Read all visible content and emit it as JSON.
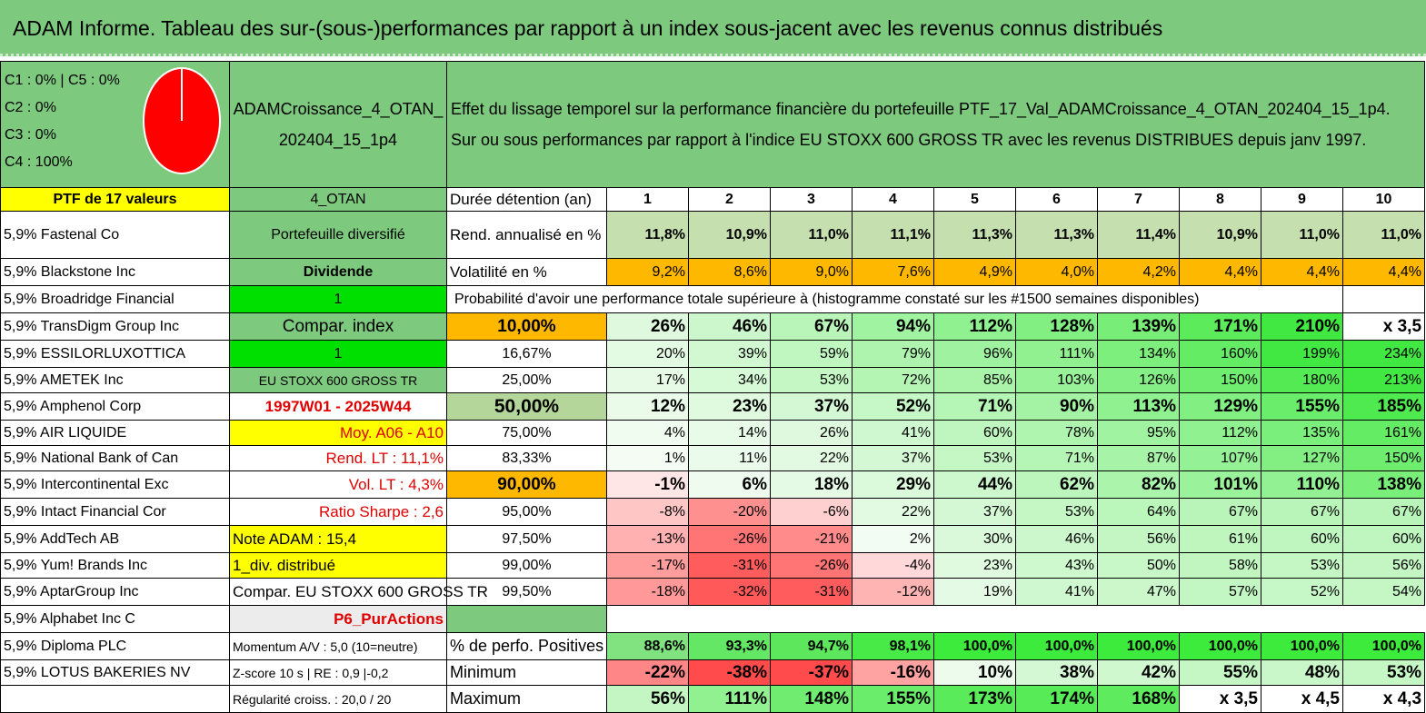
{
  "title": "ADAM Informe. Tableau des sur-(sous-)performances par rapport à un index sous-jacent avec les revenus connus distribués",
  "legend": [
    "C1 : 0% | C5 : 0%",
    "C2 : 0%",
    "C3 : 0%",
    "C4 : 100%"
  ],
  "pie_color": "#ff0000",
  "portfolio_name": "ADAMCroissance_4_OTAN_ 202404_15_1p4",
  "description_line1": "Effet du lissage temporel sur la performance financière du portefeuille PTF_17_Val_ADAMCroissance_4_OTAN_202404_15_1p4.",
  "description_line2": "Sur ou sous performances par rapport à l'indice EU STOXX 600 GROSS TR avec les revenus DISTRIBUES depuis janv 1997.",
  "ptf_header": "PTF de 17 valeurs",
  "holdings": [
    "5,9% Fastenal Co",
    "5,9% Blackstone Inc",
    "5,9% Broadridge Financial",
    "5,9% TransDigm Group Inc",
    "5,9% ESSILORLUXOTTICA",
    "5,9% AMETEK Inc",
    "5,9% Amphenol Corp",
    "5,9% AIR LIQUIDE",
    "5,9% National Bank of Can",
    "5,9% Intercontinental Exc",
    "5,9% Intact Financial Cor",
    "5,9% AddTech AB",
    "5,9% Yum! Brands Inc",
    "5,9% AptarGroup Inc",
    "5,9% Alphabet Inc C",
    "5,9% Diploma PLC",
    "5,9% LOTUS BAKERIES NV"
  ],
  "info": [
    "4_OTAN",
    "Portefeuille diversifié",
    "Dividende",
    "1",
    "Compar. index",
    "1",
    "EU STOXX 600 GROSS TR",
    "1997W01 - 2025W44",
    "Moy. A06 - A10",
    "Rend. LT : 11,1%",
    "Vol. LT : 4,3%",
    "Ratio Sharpe : 2,6",
    "Note ADAM : 15,4",
    "1_div. distribué",
    "Compar. EU STOXX 600 GROSS TR",
    "P6_PurActions",
    "Momentum A/V : 5,0 (10=neutre)",
    "Z-score 10 s | RE : 0,9 |-0,2",
    "Régularité croiss. : 20,0 / 20"
  ],
  "years_label": "Durée détention (an)",
  "years": [
    "1",
    "2",
    "3",
    "4",
    "5",
    "6",
    "7",
    "8",
    "9",
    "10"
  ],
  "rend_label": "Rend. annualisé en %",
  "rend": [
    "11,8%",
    "10,9%",
    "11,0%",
    "11,1%",
    "11,3%",
    "11,3%",
    "11,4%",
    "10,9%",
    "11,0%",
    "11,0%"
  ],
  "vol_label": "Volatilité en %",
  "vol": [
    "9,2%",
    "8,6%",
    "9,0%",
    "7,6%",
    "4,9%",
    "4,0%",
    "4,2%",
    "4,4%",
    "4,4%",
    "4,4%"
  ],
  "prob_header": "Probabilité d'avoir une performance totale supérieure à (histogramme constaté sur les #1500 semaines disponibles)",
  "quantile_rows": [
    {
      "label": "10,00%",
      "values": [
        "26%",
        "46%",
        "67%",
        "94%",
        "112%",
        "128%",
        "139%",
        "171%",
        "210%",
        "x 3,5"
      ]
    },
    {
      "label": "16,67%",
      "values": [
        "20%",
        "39%",
        "59%",
        "79%",
        "96%",
        "111%",
        "134%",
        "160%",
        "199%",
        "234%"
      ]
    },
    {
      "label": "25,00%",
      "values": [
        "17%",
        "34%",
        "53%",
        "72%",
        "85%",
        "103%",
        "126%",
        "150%",
        "180%",
        "213%"
      ]
    },
    {
      "label": "50,00%",
      "values": [
        "12%",
        "23%",
        "37%",
        "52%",
        "71%",
        "90%",
        "113%",
        "129%",
        "155%",
        "185%"
      ]
    },
    {
      "label": "75,00%",
      "values": [
        "4%",
        "14%",
        "26%",
        "41%",
        "60%",
        "78%",
        "95%",
        "112%",
        "135%",
        "161%"
      ]
    },
    {
      "label": "83,33%",
      "values": [
        "1%",
        "11%",
        "22%",
        "37%",
        "53%",
        "71%",
        "87%",
        "107%",
        "127%",
        "150%"
      ]
    },
    {
      "label": "90,00%",
      "values": [
        "-1%",
        "6%",
        "18%",
        "29%",
        "44%",
        "62%",
        "82%",
        "101%",
        "110%",
        "138%"
      ]
    },
    {
      "label": "95,00%",
      "values": [
        "-8%",
        "-20%",
        "-6%",
        "22%",
        "37%",
        "53%",
        "64%",
        "67%",
        "67%",
        "67%"
      ]
    },
    {
      "label": "97,50%",
      "values": [
        "-13%",
        "-26%",
        "-21%",
        "2%",
        "30%",
        "46%",
        "56%",
        "61%",
        "60%",
        "60%"
      ]
    },
    {
      "label": "99,00%",
      "values": [
        "-17%",
        "-31%",
        "-26%",
        "-4%",
        "23%",
        "43%",
        "50%",
        "58%",
        "53%",
        "56%"
      ]
    },
    {
      "label": "99,50%",
      "values": [
        "-18%",
        "-32%",
        "-31%",
        "-12%",
        "19%",
        "41%",
        "47%",
        "57%",
        "52%",
        "54%"
      ]
    }
  ],
  "pos_label": "% de perfo. Positives",
  "pos": [
    "88,6%",
    "93,3%",
    "94,7%",
    "98,1%",
    "100,0%",
    "100,0%",
    "100,0%",
    "100,0%",
    "100,0%",
    "100,0%"
  ],
  "min_label": "Minimum",
  "min": [
    "-22%",
    "-38%",
    "-37%",
    "-16%",
    "10%",
    "38%",
    "42%",
    "55%",
    "48%",
    "53%"
  ],
  "max_label": "Maximum",
  "max": [
    "56%",
    "111%",
    "148%",
    "155%",
    "173%",
    "174%",
    "168%",
    "x 3,5",
    "x 4,5",
    "x 4,3"
  ]
}
